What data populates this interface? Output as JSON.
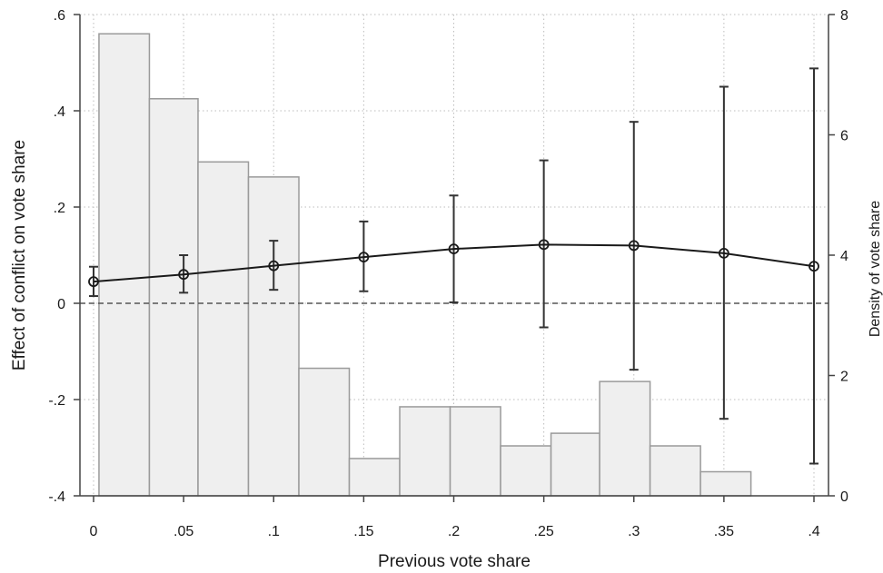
{
  "chart_data": {
    "type": "line",
    "xlabel": "Previous vote share",
    "ylabel": "Effect of conflict on vote share",
    "ylabel_right": "Density of vote share",
    "xlim": [
      0,
      0.4
    ],
    "ylim": [
      -0.4,
      0.6
    ],
    "ylim_right": [
      0,
      8
    ],
    "grid": true,
    "x_ticks": [
      {
        "value": 0,
        "label": "0"
      },
      {
        "value": 0.05,
        "label": ".05"
      },
      {
        "value": 0.1,
        "label": ".1"
      },
      {
        "value": 0.15,
        "label": ".15"
      },
      {
        "value": 0.2,
        "label": ".2"
      },
      {
        "value": 0.25,
        "label": ".25"
      },
      {
        "value": 0.3,
        "label": ".3"
      },
      {
        "value": 0.35,
        "label": ".35"
      },
      {
        "value": 0.4,
        "label": ".4"
      }
    ],
    "y_ticks": [
      {
        "value": -0.4,
        "label": "-.4"
      },
      {
        "value": -0.2,
        "label": "-.2"
      },
      {
        "value": 0,
        "label": "0"
      },
      {
        "value": 0.2,
        "label": ".2"
      },
      {
        "value": 0.4,
        "label": ".4"
      },
      {
        "value": 0.6,
        "label": ".6"
      }
    ],
    "y_right_ticks": [
      {
        "value": 0,
        "label": "0"
      },
      {
        "value": 2,
        "label": "2"
      },
      {
        "value": 4,
        "label": "4"
      },
      {
        "value": 6,
        "label": "6"
      },
      {
        "value": 8,
        "label": "8"
      }
    ],
    "reference_line_y": 0,
    "histogram": {
      "bin_edges": [
        0.003,
        0.031,
        0.058,
        0.086,
        0.114,
        0.142,
        0.17,
        0.198,
        0.226,
        0.254,
        0.281,
        0.309,
        0.337,
        0.365
      ],
      "density": [
        7.68,
        6.6,
        5.55,
        5.3,
        2.12,
        0.62,
        1.48,
        1.48,
        0.83,
        1.04,
        1.9,
        0.83,
        0.4
      ]
    },
    "series": [
      {
        "x": [
          0,
          0.05,
          0.1,
          0.15,
          0.2,
          0.25,
          0.3,
          0.35,
          0.4
        ],
        "y": [
          0.045,
          0.06,
          0.078,
          0.096,
          0.113,
          0.122,
          0.12,
          0.104,
          0.077
        ],
        "ci_low": [
          0.015,
          0.022,
          0.028,
          0.025,
          0.002,
          -0.05,
          -0.138,
          -0.24,
          -0.333
        ],
        "ci_high": [
          0.076,
          0.1,
          0.13,
          0.17,
          0.224,
          0.297,
          0.377,
          0.45,
          0.488
        ]
      }
    ],
    "colors": {
      "bar_fill": "#efefef",
      "bar_stroke": "#9a9a9a",
      "line": "#1a1a1a",
      "grid": "#bdbdbd"
    }
  }
}
